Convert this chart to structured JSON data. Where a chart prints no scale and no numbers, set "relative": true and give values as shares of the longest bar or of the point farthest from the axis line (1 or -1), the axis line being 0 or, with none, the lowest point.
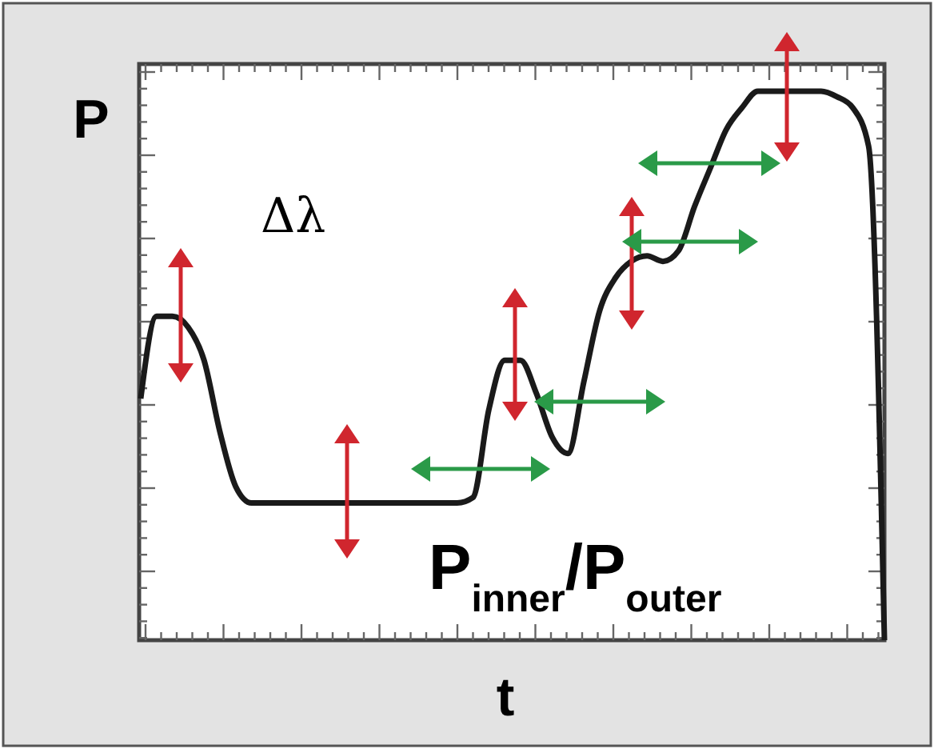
{
  "chart_data": {
    "type": "line",
    "relative": true,
    "xlabel": "t",
    "ylabel": "P",
    "color": "#1a1a1a",
    "categories": [
      null,
      null,
      null,
      null,
      null,
      null,
      null,
      null,
      null,
      null,
      null,
      null,
      null,
      null,
      null,
      null,
      null,
      null,
      null,
      null,
      null,
      null,
      null,
      null,
      null,
      null,
      null,
      null,
      null,
      null,
      null,
      null,
      null,
      null,
      null,
      null,
      null,
      null,
      null,
      null,
      null,
      null,
      null,
      null,
      null,
      null,
      null,
      null
    ],
    "values": [
      0.44,
      0.59,
      0.59,
      0.57,
      0.51,
      0.38,
      0.28,
      0.25,
      0.25,
      0.25,
      0.25,
      0.25,
      0.25,
      0.25,
      0.25,
      0.25,
      0.25,
      0.25,
      0.25,
      0.25,
      0.25,
      0.26,
      0.42,
      0.51,
      0.51,
      0.45,
      0.37,
      0.34,
      0.47,
      0.6,
      0.66,
      0.69,
      0.7,
      0.69,
      0.71,
      0.79,
      0.86,
      0.93,
      0.97,
      1,
      1,
      1,
      1,
      1,
      0.99,
      0.97,
      0.9,
      0
    ],
    "annotations": [
      "Δλ",
      "P$_{inner}$/P$_{outer}$"
    ],
    "marker": "none",
    "line_style": "solid"
  }
}
